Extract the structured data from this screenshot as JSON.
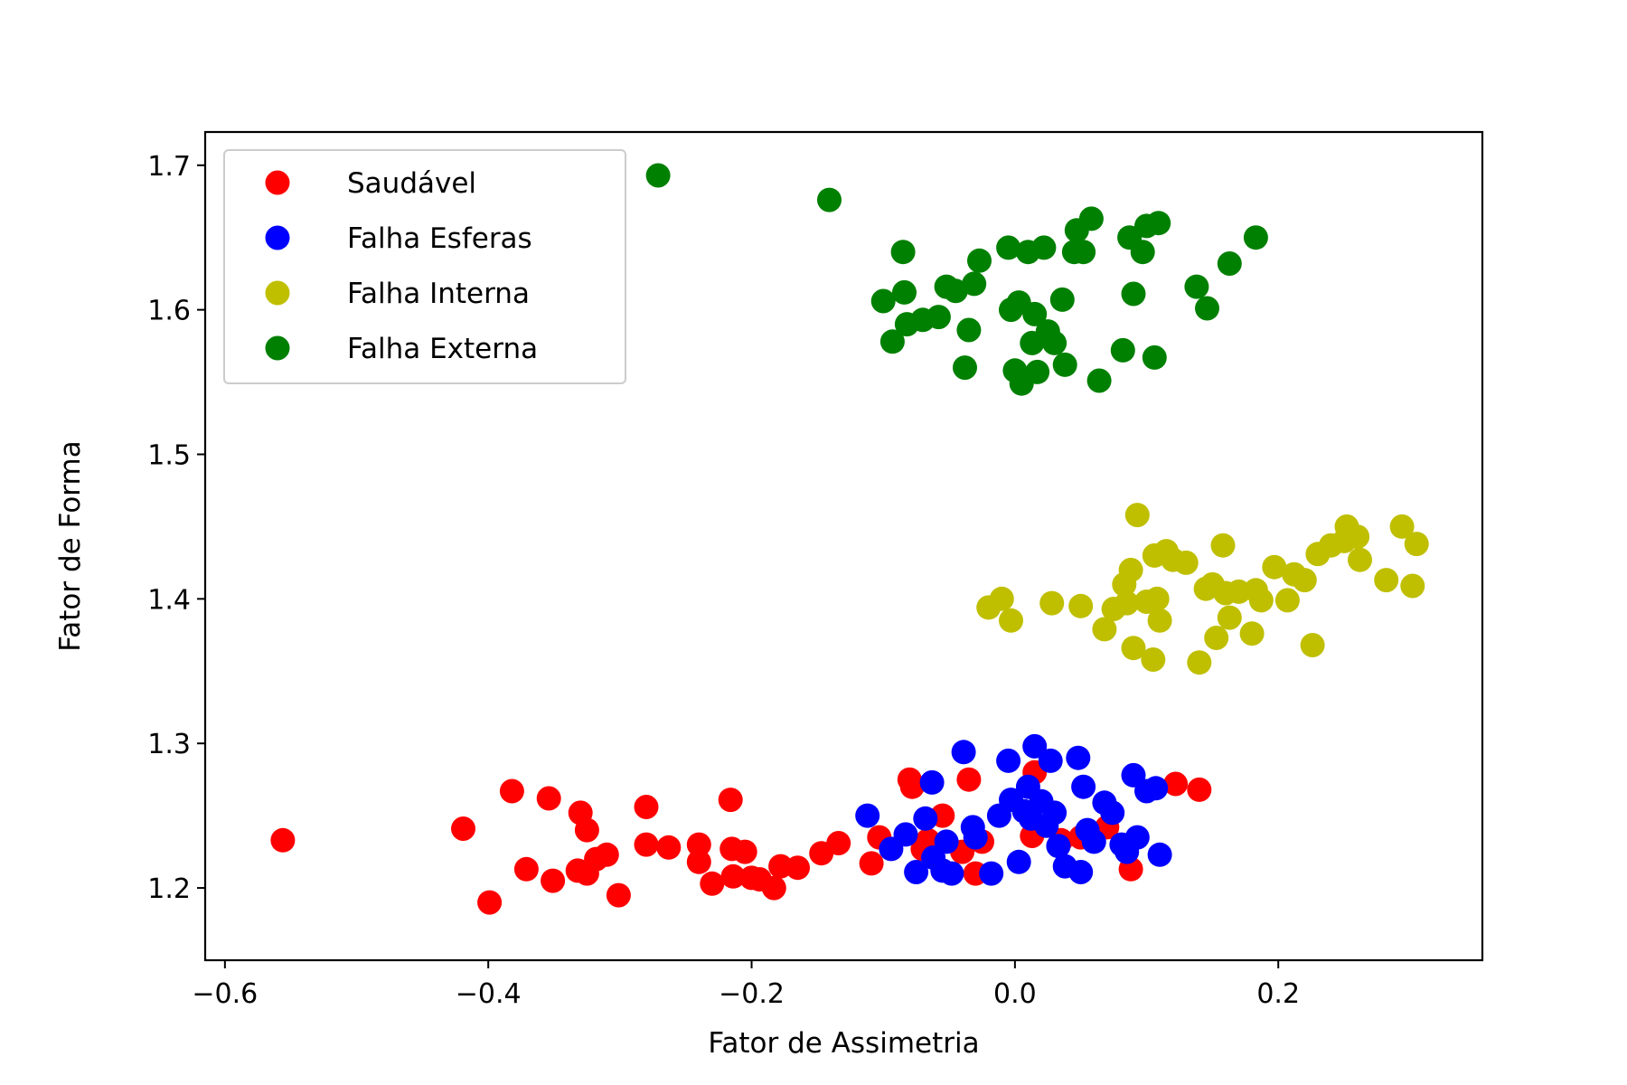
{
  "chart_data": {
    "type": "scatter",
    "title": "",
    "xlabel": "Fator de Assimetria",
    "ylabel": "Fator de Forma",
    "xlim": [
      -0.615,
      0.355
    ],
    "ylim": [
      1.15,
      1.723
    ],
    "xticks": [
      -0.6,
      -0.4,
      -0.2,
      0.0,
      0.2
    ],
    "xtick_labels": [
      "−0.6",
      "−0.4",
      "−0.2",
      "0.0",
      "0.2"
    ],
    "yticks": [
      1.2,
      1.3,
      1.4,
      1.5,
      1.6,
      1.7
    ],
    "ytick_labels": [
      "1.2",
      "1.3",
      "1.4",
      "1.5",
      "1.6",
      "1.7"
    ],
    "grid": false,
    "legend_position": "top-left",
    "series": [
      {
        "name": "Saudável",
        "color": "#ff0000",
        "points": [
          [
            -0.556,
            1.233
          ],
          [
            -0.419,
            1.241
          ],
          [
            -0.399,
            1.19
          ],
          [
            -0.382,
            1.267
          ],
          [
            -0.371,
            1.213
          ],
          [
            -0.354,
            1.262
          ],
          [
            -0.351,
            1.205
          ],
          [
            -0.332,
            1.212
          ],
          [
            -0.33,
            1.252
          ],
          [
            -0.325,
            1.24
          ],
          [
            -0.325,
            1.21
          ],
          [
            -0.318,
            1.22
          ],
          [
            -0.31,
            1.223
          ],
          [
            -0.301,
            1.195
          ],
          [
            -0.28,
            1.256
          ],
          [
            -0.28,
            1.23
          ],
          [
            -0.263,
            1.228
          ],
          [
            -0.24,
            1.23
          ],
          [
            -0.24,
            1.218
          ],
          [
            -0.23,
            1.203
          ],
          [
            -0.216,
            1.261
          ],
          [
            -0.215,
            1.227
          ],
          [
            -0.214,
            1.208
          ],
          [
            -0.205,
            1.225
          ],
          [
            -0.2,
            1.207
          ],
          [
            -0.194,
            1.206
          ],
          [
            -0.183,
            1.2
          ],
          [
            -0.178,
            1.215
          ],
          [
            -0.165,
            1.214
          ],
          [
            -0.147,
            1.224
          ],
          [
            -0.134,
            1.231
          ],
          [
            -0.109,
            1.217
          ],
          [
            -0.103,
            1.235
          ],
          [
            -0.08,
            1.275
          ],
          [
            -0.078,
            1.27
          ],
          [
            -0.07,
            1.227
          ],
          [
            -0.066,
            1.233
          ],
          [
            -0.055,
            1.25
          ],
          [
            -0.04,
            1.225
          ],
          [
            -0.035,
            1.275
          ],
          [
            -0.03,
            1.21
          ],
          [
            -0.025,
            1.232
          ],
          [
            0.015,
            1.28
          ],
          [
            0.013,
            1.236
          ],
          [
            0.035,
            1.233
          ],
          [
            0.05,
            1.235
          ],
          [
            0.07,
            1.242
          ],
          [
            0.088,
            1.213
          ],
          [
            0.122,
            1.272
          ],
          [
            0.14,
            1.268
          ]
        ]
      },
      {
        "name": "Falha Esferas",
        "color": "#0000ff",
        "points": [
          [
            -0.112,
            1.25
          ],
          [
            -0.094,
            1.227
          ],
          [
            -0.083,
            1.237
          ],
          [
            -0.075,
            1.211
          ],
          [
            -0.068,
            1.248
          ],
          [
            -0.063,
            1.273
          ],
          [
            -0.062,
            1.221
          ],
          [
            -0.055,
            1.212
          ],
          [
            -0.052,
            1.232
          ],
          [
            -0.048,
            1.21
          ],
          [
            -0.039,
            1.294
          ],
          [
            -0.032,
            1.242
          ],
          [
            -0.03,
            1.235
          ],
          [
            -0.018,
            1.21
          ],
          [
            -0.012,
            1.25
          ],
          [
            -0.005,
            1.288
          ],
          [
            -0.003,
            1.261
          ],
          [
            0.003,
            1.218
          ],
          [
            0.007,
            1.253
          ],
          [
            0.01,
            1.27
          ],
          [
            0.012,
            1.248
          ],
          [
            0.015,
            1.298
          ],
          [
            0.02,
            1.26
          ],
          [
            0.024,
            1.243
          ],
          [
            0.027,
            1.288
          ],
          [
            0.03,
            1.252
          ],
          [
            0.033,
            1.229
          ],
          [
            0.038,
            1.215
          ],
          [
            0.048,
            1.29
          ],
          [
            0.05,
            1.211
          ],
          [
            0.052,
            1.27
          ],
          [
            0.055,
            1.24
          ],
          [
            0.06,
            1.232
          ],
          [
            0.068,
            1.259
          ],
          [
            0.074,
            1.252
          ],
          [
            0.081,
            1.23
          ],
          [
            0.085,
            1.225
          ],
          [
            0.09,
            1.278
          ],
          [
            0.093,
            1.235
          ],
          [
            0.1,
            1.267
          ],
          [
            0.107,
            1.269
          ],
          [
            0.11,
            1.223
          ]
        ]
      },
      {
        "name": "Falha Interna",
        "color": "#bfbf00",
        "points": [
          [
            -0.02,
            1.394
          ],
          [
            -0.01,
            1.4
          ],
          [
            -0.003,
            1.385
          ],
          [
            0.028,
            1.397
          ],
          [
            0.05,
            1.395
          ],
          [
            0.068,
            1.379
          ],
          [
            0.075,
            1.393
          ],
          [
            0.083,
            1.41
          ],
          [
            0.085,
            1.397
          ],
          [
            0.088,
            1.42
          ],
          [
            0.09,
            1.366
          ],
          [
            0.093,
            1.458
          ],
          [
            0.1,
            1.398
          ],
          [
            0.105,
            1.358
          ],
          [
            0.106,
            1.43
          ],
          [
            0.108,
            1.4
          ],
          [
            0.11,
            1.385
          ],
          [
            0.115,
            1.433
          ],
          [
            0.12,
            1.427
          ],
          [
            0.13,
            1.425
          ],
          [
            0.14,
            1.356
          ],
          [
            0.145,
            1.407
          ],
          [
            0.15,
            1.41
          ],
          [
            0.153,
            1.373
          ],
          [
            0.158,
            1.437
          ],
          [
            0.16,
            1.404
          ],
          [
            0.163,
            1.387
          ],
          [
            0.17,
            1.405
          ],
          [
            0.18,
            1.376
          ],
          [
            0.183,
            1.406
          ],
          [
            0.187,
            1.399
          ],
          [
            0.197,
            1.422
          ],
          [
            0.207,
            1.399
          ],
          [
            0.212,
            1.417
          ],
          [
            0.22,
            1.413
          ],
          [
            0.226,
            1.368
          ],
          [
            0.23,
            1.431
          ],
          [
            0.24,
            1.437
          ],
          [
            0.25,
            1.44
          ],
          [
            0.252,
            1.45
          ],
          [
            0.26,
            1.443
          ],
          [
            0.262,
            1.427
          ],
          [
            0.282,
            1.413
          ],
          [
            0.294,
            1.45
          ],
          [
            0.302,
            1.409
          ],
          [
            0.305,
            1.438
          ]
        ]
      },
      {
        "name": "Falha Externa",
        "color": "#008000",
        "points": [
          [
            -0.271,
            1.693
          ],
          [
            -0.141,
            1.676
          ],
          [
            -0.1,
            1.606
          ],
          [
            -0.093,
            1.578
          ],
          [
            -0.085,
            1.64
          ],
          [
            -0.084,
            1.612
          ],
          [
            -0.082,
            1.59
          ],
          [
            -0.07,
            1.593
          ],
          [
            -0.058,
            1.595
          ],
          [
            -0.052,
            1.616
          ],
          [
            -0.045,
            1.613
          ],
          [
            -0.038,
            1.56
          ],
          [
            -0.035,
            1.586
          ],
          [
            -0.031,
            1.618
          ],
          [
            -0.027,
            1.634
          ],
          [
            -0.005,
            1.643
          ],
          [
            -0.003,
            1.6
          ],
          [
            0.0,
            1.558
          ],
          [
            0.003,
            1.605
          ],
          [
            0.005,
            1.549
          ],
          [
            0.01,
            1.64
          ],
          [
            0.013,
            1.577
          ],
          [
            0.015,
            1.597
          ],
          [
            0.017,
            1.557
          ],
          [
            0.022,
            1.643
          ],
          [
            0.025,
            1.585
          ],
          [
            0.03,
            1.577
          ],
          [
            0.036,
            1.607
          ],
          [
            0.038,
            1.562
          ],
          [
            0.045,
            1.64
          ],
          [
            0.047,
            1.655
          ],
          [
            0.052,
            1.64
          ],
          [
            0.058,
            1.663
          ],
          [
            0.064,
            1.551
          ],
          [
            0.082,
            1.572
          ],
          [
            0.087,
            1.65
          ],
          [
            0.09,
            1.611
          ],
          [
            0.097,
            1.64
          ],
          [
            0.1,
            1.658
          ],
          [
            0.106,
            1.567
          ],
          [
            0.109,
            1.66
          ],
          [
            0.138,
            1.616
          ],
          [
            0.146,
            1.601
          ],
          [
            0.163,
            1.632
          ],
          [
            0.183,
            1.65
          ]
        ]
      }
    ]
  }
}
